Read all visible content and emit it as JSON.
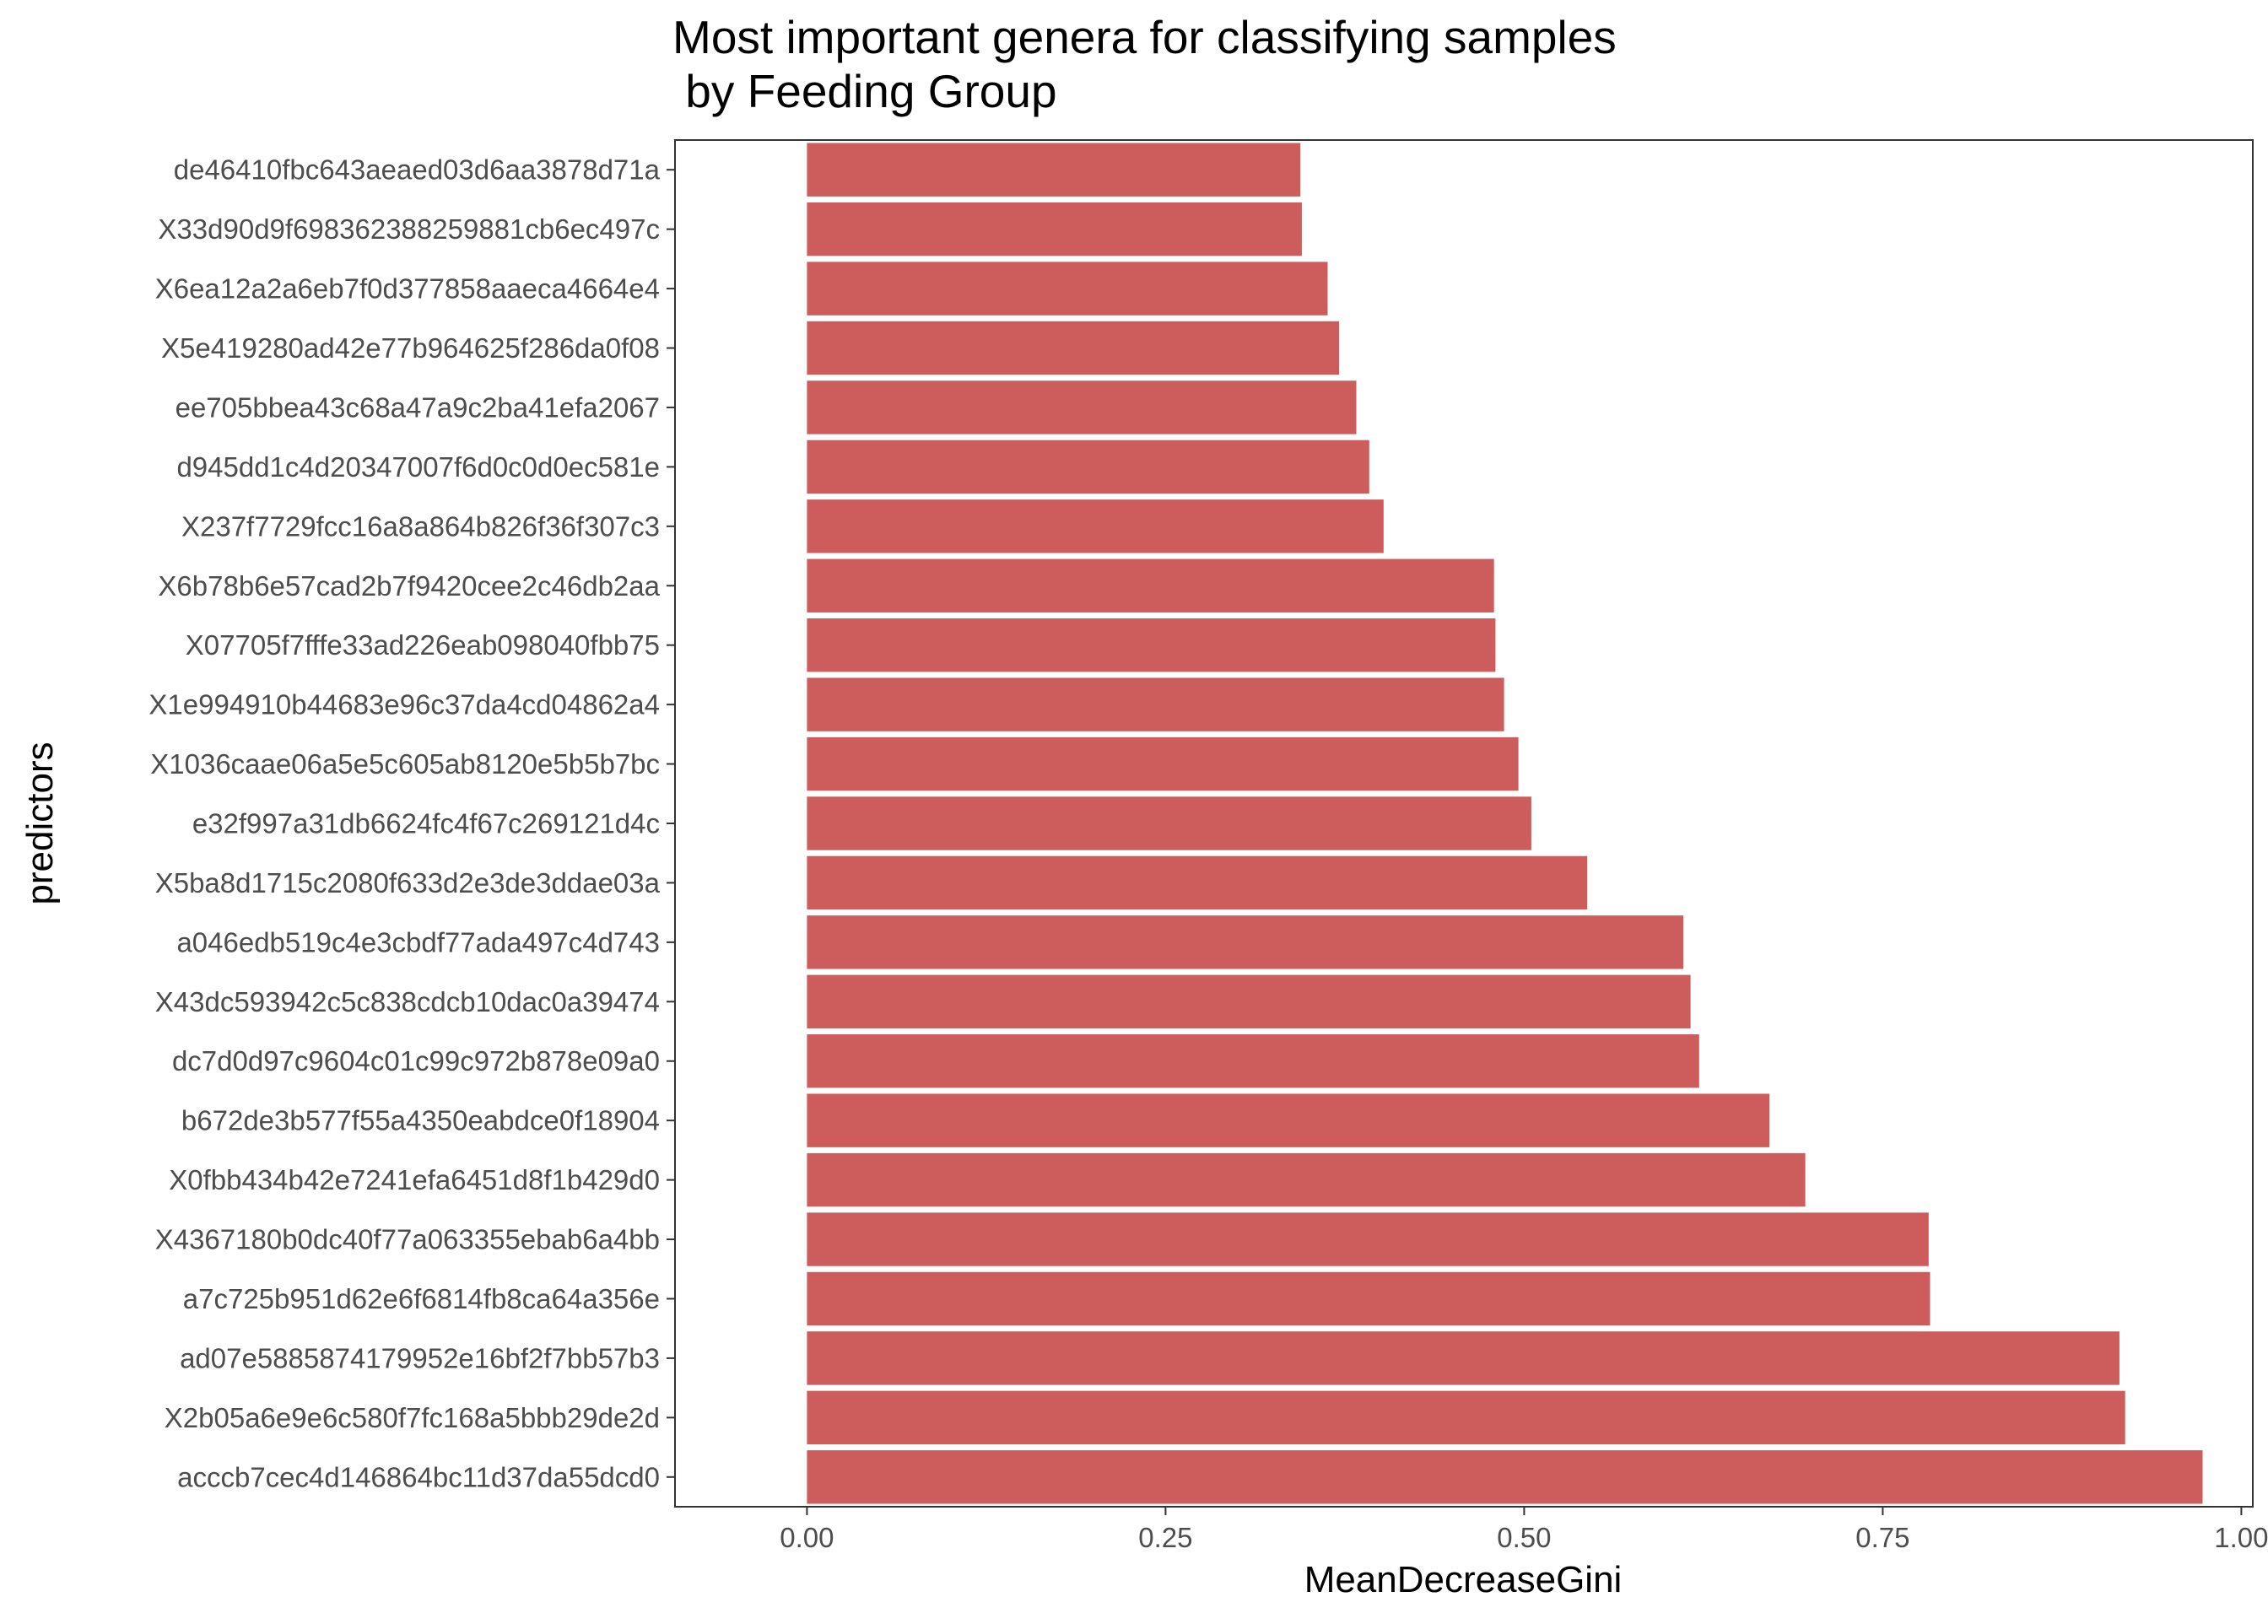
{
  "chart_data": {
    "type": "bar",
    "orientation": "horizontal",
    "title": "Most important genera for classifying  samples",
    "subtitle": " by Feeding Group",
    "xlabel": "MeanDecreaseGini",
    "ylabel": "predictors",
    "xlim": [
      -0.092,
      1.008
    ],
    "xticks": [
      0.0,
      0.25,
      0.5,
      0.75,
      1.0
    ],
    "xtick_labels": [
      "0.00",
      "0.25",
      "0.50",
      "0.75",
      "1.00"
    ],
    "bar_color": "#cd5c5c",
    "grid": false,
    "categories": [
      "de46410fbc643aeaed03d6aa3878d71a",
      "X33d90d9f698362388259881cb6ec497c",
      "X6ea12a2a6eb7f0d377858aaeca4664e4",
      "X5e419280ad42e77b964625f286da0f08",
      "ee705bbea43c68a47a9c2ba41efa2067",
      "d945dd1c4d20347007f6d0c0d0ec581e",
      "X237f7729fcc16a8a864b826f36f307c3",
      "X6b78b6e57cad2b7f9420cee2c46db2aa",
      "X07705f7fffe33ad226eab098040fbb75",
      "X1e994910b44683e96c37da4cd04862a4",
      "X1036caae06a5e5c605ab8120e5b5b7bc",
      "e32f997a31db6624fc4f67c269121d4c",
      "X5ba8d1715c2080f633d2e3de3ddae03a",
      "a046edb519c4e3cbdf77ada497c4d743",
      "X43dc593942c5c838cdcb10dac0a39474",
      "dc7d0d97c9604c01c99c972b878e09a0",
      "b672de3b577f55a4350eabdce0f18904",
      "X0fbb434b42e7241efa6451d8f1b429d0",
      "X4367180b0dc40f77a063355ebab6a4bb",
      "a7c725b951d62e6f6814fb8ca64a356e",
      "ad07e5885874179952e16bf2f7bb57b3",
      "X2b05a6e9e6c580f7fc168a5bbb29de2d",
      "acccb7cec4d146864bc11d37da55dcd0"
    ],
    "values": [
      0.344,
      0.345,
      0.363,
      0.371,
      0.383,
      0.392,
      0.402,
      0.479,
      0.48,
      0.486,
      0.496,
      0.505,
      0.544,
      0.611,
      0.616,
      0.622,
      0.671,
      0.696,
      0.782,
      0.783,
      0.915,
      0.919,
      0.973
    ]
  }
}
